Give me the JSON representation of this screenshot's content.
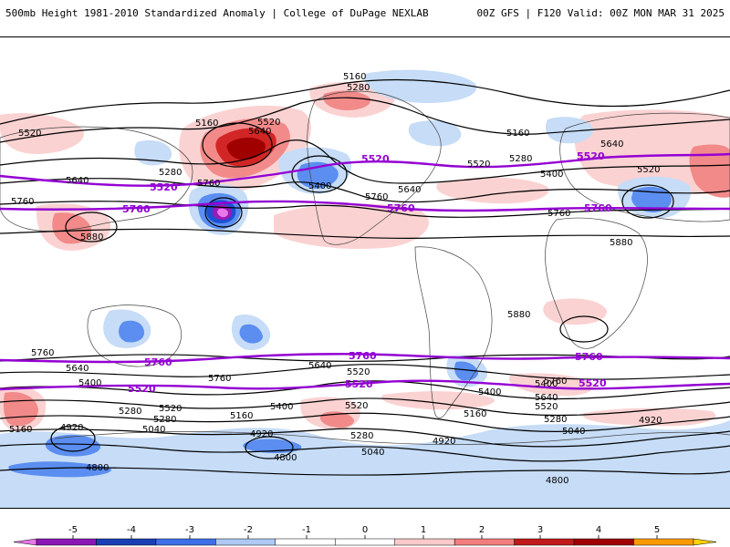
{
  "header": {
    "left_title": "500mb Height 1981-2010 Standardized Anomaly | College of DuPage NEXLAB",
    "right_title": "00Z GFS | F120 Valid: 00Z MON MAR 31 2025"
  },
  "map": {
    "contour_labels_black": [
      "5160",
      "5280",
      "5160",
      "5520",
      "5640",
      "5640",
      "5280",
      "5520",
      "5760",
      "5400",
      "5640",
      "5760",
      "5520",
      "5160",
      "5280",
      "5400",
      "5520",
      "5640",
      "5760",
      "5880",
      "5880",
      "5760",
      "5880",
      "5760",
      "5640",
      "5400",
      "5520",
      "5280",
      "5160",
      "4920",
      "5040",
      "4800",
      "5640",
      "5760",
      "5520",
      "5400",
      "5160",
      "4920",
      "4800",
      "5040",
      "5280",
      "5520",
      "5400",
      "5160",
      "4920",
      "5760",
      "5640",
      "5520",
      "5400",
      "5280",
      "5040",
      "4920",
      "4800",
      "5280"
    ],
    "contour_labels_purple": [
      "5520",
      "5760",
      "5520",
      "5760",
      "5520",
      "5760",
      "5760",
      "5520",
      "5760",
      "5520",
      "5760",
      "5520"
    ],
    "colors": {
      "purple_contour": "#9400d3",
      "black_contour": "#000000",
      "neg1": "#c6dcf7",
      "neg2": "#5b8ef0",
      "neg3": "#1e50d2",
      "neg4_5": "#9c19b8",
      "neg5": "#e877ea",
      "pos1": "#fbd2d2",
      "pos2": "#f28a8a",
      "pos3": "#d22626",
      "pos4": "#a00000"
    }
  },
  "colorbar": {
    "ticks": [
      "-5",
      "-4",
      "-3",
      "-2",
      "-1",
      "0",
      "1",
      "2",
      "3",
      "4",
      "5"
    ],
    "colors": [
      "#e877ea",
      "#8a16b5",
      "#1a3fb5",
      "#3e6ee8",
      "#aec9f4",
      "#ffffff",
      "#ffffff",
      "#fbc9c9",
      "#f27d7d",
      "#c21a1a",
      "#a00000",
      "#ff9a00",
      "#ffd200"
    ]
  }
}
